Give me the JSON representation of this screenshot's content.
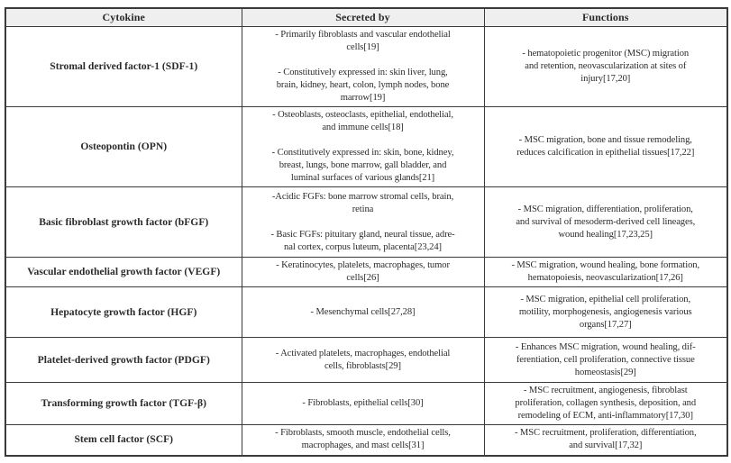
{
  "colors": {
    "header_bg": "#efefef",
    "border": "#3a3a3a",
    "text": "#2b2b2b",
    "page_bg": "#ffffff"
  },
  "table": {
    "headers": {
      "cytokine": "Cytokine",
      "secreted_by": "Secreted by",
      "functions": "Functions"
    },
    "rows": [
      {
        "cytokine": "Stromal derived factor-1 (SDF-1)",
        "secreted_by": "- Primarily fibroblasts and vascular endothelial\ncells[19]\n\n- Constitutively expressed in: skin liver, lung,\nbrain, kidney, heart, colon, lymph nodes, bone\nmarrow[19]",
        "functions": "- hematopoietic progenitor (MSC) migration\nand retention, neovascularization at sites of\ninjury[17,20]"
      },
      {
        "cytokine": "Osteopontin (OPN)",
        "secreted_by": "- Osteoblasts, osteoclasts, epithelial, endothelial,\nand immune cells[18]\n\n- Constitutively expressed in: skin, bone, kidney,\nbreast, lungs, bone marrow, gall bladder, and\nluminal surfaces of various glands[21]",
        "functions": "- MSC migration, bone and tissue remodeling,\nreduces calcification in epithelial tissues[17,22]"
      },
      {
        "cytokine": "Basic fibroblast growth factor (bFGF)",
        "secreted_by": "-Acidic FGFs: bone marrow stromal cells, brain,\nretina\n\n- Basic FGFs: pituitary gland, neural tissue, adre-\nnal cortex, corpus luteum, placenta[23,24]",
        "functions": "- MSC migration, differentiation, proliferation,\nand survival of mesoderm-derived cell lineages,\nwound healing[17,23,25]"
      },
      {
        "cytokine": "Vascular endothelial growth factor (VEGF)",
        "secreted_by": "- Keratinocytes, platelets, macrophages, tumor\ncells[26]",
        "functions": "- MSC migration, wound healing, bone formation,\nhematopoiesis, neovascularization[17,26]"
      },
      {
        "cytokine": "Hepatocyte growth factor (HGF)",
        "secreted_by": "- Mesenchymal cells[27,28]",
        "functions": "- MSC migration, epithelial cell proliferation,\nmotility, morphogenesis, angiogenesis various\norgans[17,27]"
      },
      {
        "cytokine": "Platelet-derived growth factor (PDGF)",
        "secreted_by": "- Activated platelets, macrophages, endothelial\ncells, fibroblasts[29]",
        "functions": "- Enhances MSC migration, wound healing, dif-\nferentiation, cell proliferation, connective tissue\nhomeostasis[29]"
      },
      {
        "cytokine": "Transforming growth factor (TGF-β)",
        "secreted_by": "- Fibroblasts, epithelial cells[30]",
        "functions": "- MSC recruitment, angiogenesis, fibroblast\nproliferation, collagen synthesis, deposition, and\nremodeling of ECM, anti-inflammatory[17,30]"
      },
      {
        "cytokine": "Stem cell factor (SCF)",
        "secreted_by": "- Fibroblasts, smooth muscle, endothelial cells,\nmacrophages, and mast cells[31]",
        "functions": "- MSC recruitment, proliferation, differentiation,\nand survival[17,32]"
      }
    ]
  }
}
